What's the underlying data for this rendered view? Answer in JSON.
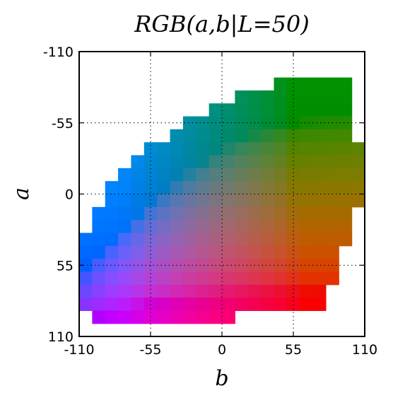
{
  "chart_data": {
    "type": "heatmap",
    "title": "RGB(a,b|L=50)",
    "xlabel": "b",
    "ylabel": "a",
    "xlim": [
      -110,
      110
    ],
    "ylim": [
      -110,
      110
    ],
    "y_inverted": true,
    "grid": true,
    "grid_style": "dotted",
    "x_ticks": [
      -110,
      -55,
      0,
      55,
      110
    ],
    "y_ticks": [
      -110,
      -55,
      0,
      55,
      110
    ],
    "x_tick_labels": [
      "-110",
      "-55",
      "0",
      "55",
      "110"
    ],
    "y_tick_labels": [
      "-110",
      "-55",
      "0",
      "55",
      "110"
    ],
    "cell_size": 10,
    "row_centers_a": [
      -85,
      -75,
      -65,
      -55,
      -45,
      -35,
      -25,
      -15,
      -5,
      5,
      15,
      25,
      35,
      45,
      55,
      65,
      75,
      85,
      95
    ],
    "row_b_ranges": [
      [
        45,
        95
      ],
      [
        15,
        95
      ],
      [
        -5,
        95
      ],
      [
        -25,
        95
      ],
      [
        -35,
        95
      ],
      [
        -55,
        105
      ],
      [
        -65,
        105
      ],
      [
        -75,
        105
      ],
      [
        -85,
        105
      ],
      [
        -85,
        105
      ],
      [
        -95,
        95
      ],
      [
        -95,
        95
      ],
      [
        -105,
        95
      ],
      [
        -105,
        85
      ],
      [
        -115,
        85
      ],
      [
        -115,
        85
      ],
      [
        -115,
        75
      ],
      [
        -115,
        75
      ],
      [
        -95,
        5
      ]
    ],
    "color_model": "CIELAB L=50 converted to sRGB per cell (a = row value, b = column value)"
  }
}
